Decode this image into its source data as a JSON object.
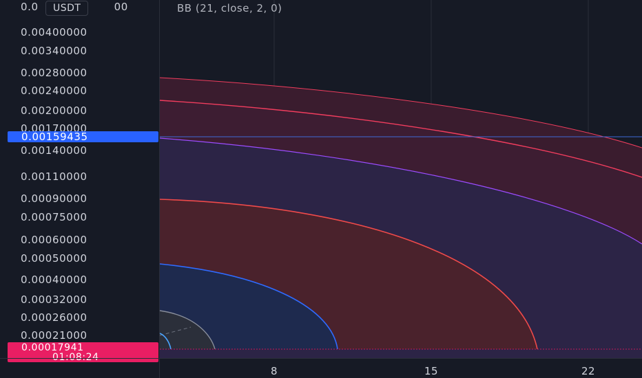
{
  "price_axis": {
    "currency": "USDT",
    "top_label": "0.0",
    "top_label_tail": "00",
    "ticks": [
      "0.00400000",
      "0.00340000",
      "0.00280000",
      "0.00240000",
      "0.00200000",
      "0.00170000",
      "0.00140000",
      "0.00110000",
      "0.00090000",
      "0.00075000",
      "0.00060000",
      "0.00050000",
      "0.00040000",
      "0.00032000",
      "0.00026000",
      "0.00021000"
    ]
  },
  "indicator": {
    "legend": "BB (21, close, 2, 0)"
  },
  "price_tags": {
    "crosshair_price": "0.00159435",
    "last_price": "0.00017941",
    "countdown": "01:08:24"
  },
  "time_axis": {
    "labels": [
      "8",
      "15",
      "22"
    ]
  },
  "colors": {
    "background": "#161a25",
    "grid": "#2a2e39",
    "red_band_fill": "#4a1f33",
    "red_band_line": "#f23d5e",
    "purple_fill": "#2c2446",
    "purple_line": "#9c4cff",
    "blue_fill": "#1e2a4e",
    "blue_line": "#2f6bff",
    "crosshair_blue": "#2962ff",
    "last_price_red": "#e91e63"
  }
}
